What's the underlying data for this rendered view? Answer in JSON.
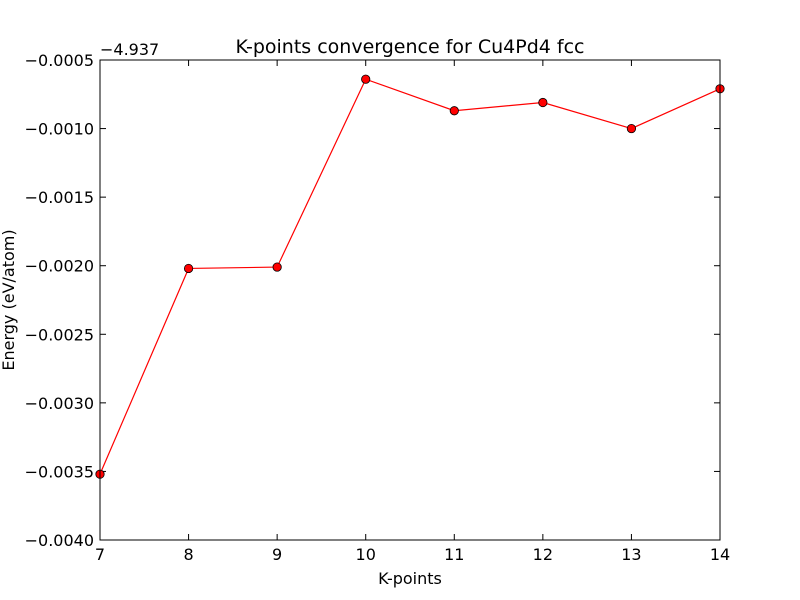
{
  "chart_data": {
    "type": "line",
    "title": "K-points convergence for Cu4Pd4 fcc",
    "xlabel": "K-points",
    "ylabel": "Energy (eV/atom)",
    "y_offset_label": "−4.937",
    "xlim": [
      7,
      14
    ],
    "ylim": [
      -0.004,
      -0.0005
    ],
    "xticks": [
      7,
      8,
      9,
      10,
      11,
      12,
      13,
      14
    ],
    "xtick_labels": [
      "7",
      "8",
      "9",
      "10",
      "11",
      "12",
      "13",
      "14"
    ],
    "yticks": [
      -0.0005,
      -0.001,
      -0.0015,
      -0.002,
      -0.0025,
      -0.003,
      -0.0035,
      -0.004
    ],
    "ytick_labels": [
      "−0.0005",
      "−0.0010",
      "−0.0015",
      "−0.0020",
      "−0.0025",
      "−0.0030",
      "−0.0035",
      "−0.0040"
    ],
    "grid": false,
    "series": [
      {
        "color": "#ff0000",
        "marker": "circle",
        "x": [
          7,
          8,
          9,
          10,
          11,
          12,
          13,
          14
        ],
        "y": [
          -0.00352,
          -0.00202,
          -0.00201,
          -0.00064,
          -0.00087,
          -0.00081,
          -0.001,
          -0.00071
        ]
      }
    ]
  }
}
